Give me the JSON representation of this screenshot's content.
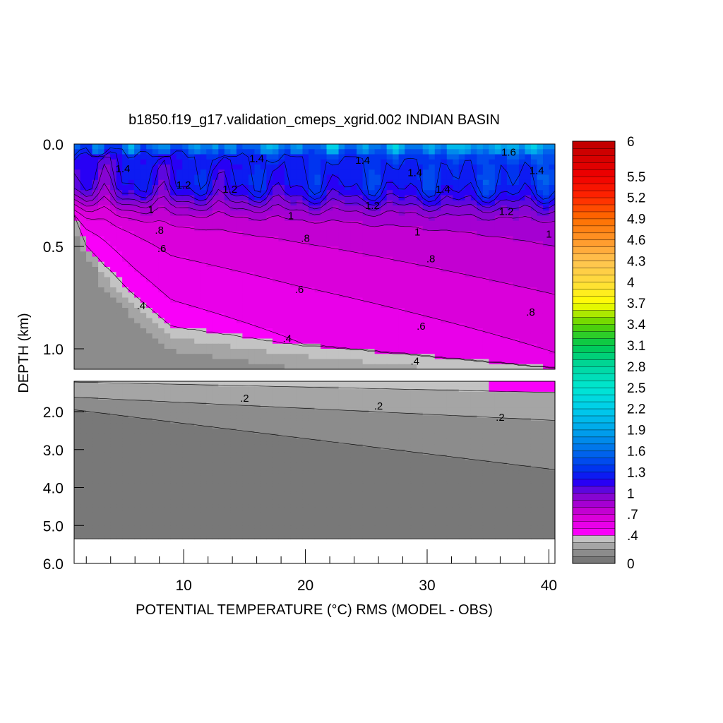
{
  "chart_data": {
    "type": "heatmap",
    "plot_type": "filled contour",
    "title": "b1850.f19_g17.validation_cmeps_xgrid.002 INDIAN BASIN",
    "xlabel": "POTENTIAL TEMPERATURE (°C) RMS (MODEL - OBS)",
    "ylabel": "DEPTH (km)",
    "xlim": [
      1,
      40.5
    ],
    "x_ticks": [
      "10",
      "20",
      "30",
      "40"
    ],
    "x_tick_values": [
      10,
      20,
      30,
      40
    ],
    "upper_panel": {
      "ylim": [
        0,
        1.1
      ],
      "y_ticks": [
        "0.0",
        "0.5",
        "1.0"
      ],
      "y_tick_values": [
        0,
        0.5,
        1.0
      ]
    },
    "lower_panel": {
      "ylim": [
        1.2,
        6.0
      ],
      "y_ticks": [
        "2.0",
        "3.0",
        "4.0",
        "5.0",
        "6.0"
      ],
      "y_tick_values": [
        2,
        3,
        4,
        5,
        6
      ],
      "data_bottom_km": 5.35
    },
    "colorbar": {
      "min": 0,
      "max": 6,
      "labels": [
        "6",
        "5.5",
        "5.2",
        "4.9",
        "4.6",
        "4.3",
        "4",
        "3.7",
        "3.4",
        "3.1",
        "2.8",
        "2.5",
        "2.2",
        "1.9",
        "1.6",
        "1.3",
        "1",
        ".7",
        ".4",
        "0"
      ],
      "label_values": [
        6,
        5.5,
        5.2,
        4.9,
        4.6,
        4.3,
        4.0,
        3.7,
        3.4,
        3.1,
        2.8,
        2.5,
        2.2,
        1.9,
        1.6,
        1.3,
        1.0,
        0.7,
        0.4,
        0
      ]
    },
    "contour_labels_upper": [
      {
        "text": "1.4",
        "x": 5,
        "y": 0.12
      },
      {
        "text": "1.4",
        "x": 16,
        "y": 0.07
      },
      {
        "text": "1.4",
        "x": 24.7,
        "y": 0.08
      },
      {
        "text": "1.4",
        "x": 29,
        "y": 0.14
      },
      {
        "text": "1.4",
        "x": 31.3,
        "y": 0.22
      },
      {
        "text": "1.6",
        "x": 36.7,
        "y": 0.04
      },
      {
        "text": "1.4",
        "x": 39,
        "y": 0.13
      },
      {
        "text": "1.2",
        "x": 10,
        "y": 0.2
      },
      {
        "text": "1.2",
        "x": 13.8,
        "y": 0.22
      },
      {
        "text": "1.2",
        "x": 25.5,
        "y": 0.3
      },
      {
        "text": "1.2",
        "x": 36.5,
        "y": 0.33
      },
      {
        "text": "1",
        "x": 7.3,
        "y": 0.32
      },
      {
        "text": "1",
        "x": 18.8,
        "y": 0.35
      },
      {
        "text": "1",
        "x": 29.2,
        "y": 0.43
      },
      {
        "text": "1",
        "x": 40,
        "y": 0.44
      },
      {
        "text": ".8",
        "x": 8,
        "y": 0.42
      },
      {
        "text": ".8",
        "x": 20,
        "y": 0.46
      },
      {
        "text": ".8",
        "x": 30.3,
        "y": 0.56
      },
      {
        "text": ".8",
        "x": 38.5,
        "y": 0.82
      },
      {
        "text": ".6",
        "x": 8.2,
        "y": 0.51
      },
      {
        "text": ".6",
        "x": 19.5,
        "y": 0.71
      },
      {
        "text": ".6",
        "x": 29.5,
        "y": 0.89
      },
      {
        "text": ".4",
        "x": 6.5,
        "y": 0.79
      },
      {
        "text": ".4",
        "x": 18.5,
        "y": 0.95
      },
      {
        "text": ".4",
        "x": 29,
        "y": 1.06
      }
    ],
    "contour_labels_lower": [
      {
        "text": ".2",
        "x": 15,
        "y": 1.65
      },
      {
        "text": ".2",
        "x": 26,
        "y": 1.85
      },
      {
        "text": ".2",
        "x": 36,
        "y": 2.15
      }
    ]
  }
}
